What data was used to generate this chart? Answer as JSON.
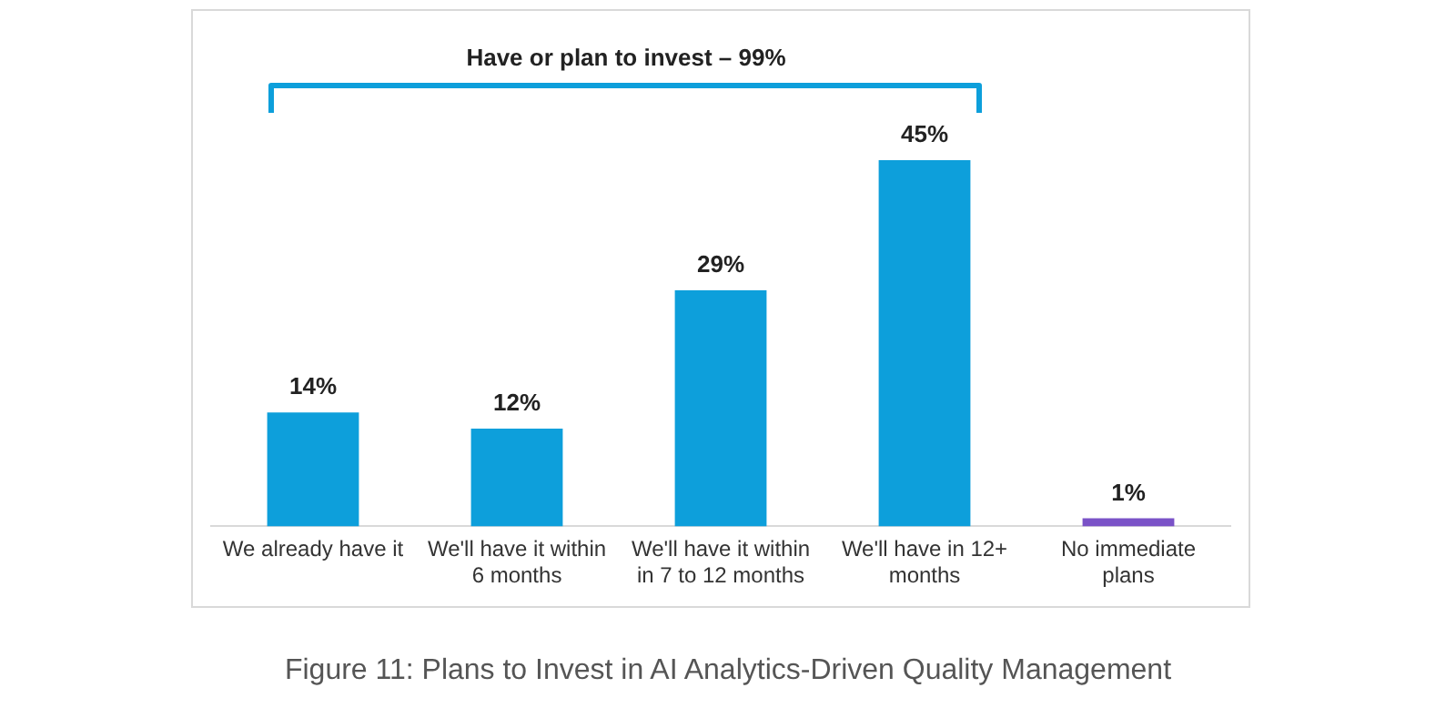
{
  "chart_data": {
    "type": "bar",
    "title": "Figure 11: Plans to Invest in AI Analytics-Driven Quality Management",
    "categories": [
      "We already have it",
      "We'll have it within 6 months",
      "We'll have it within in 7 to 12 months",
      "We'll have in 12+ months",
      "No immediate plans"
    ],
    "values": [
      14,
      12,
      29,
      45,
      1
    ],
    "colors": [
      "#0d9fdb",
      "#0d9fdb",
      "#0d9fdb",
      "#0d9fdb",
      "#7a52c7"
    ],
    "value_labels": [
      "14%",
      "12%",
      "29%",
      "45%",
      "1%"
    ],
    "annotations": [
      "Have or plan to invest – 99%"
    ],
    "grid": false,
    "legend": false
  }
}
